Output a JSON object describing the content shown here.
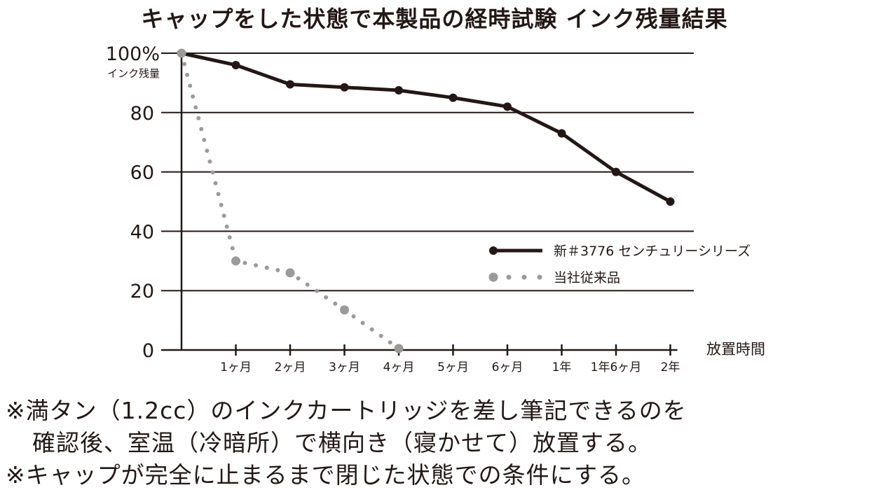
{
  "chart_data": {
    "type": "line",
    "title": "キャップをした状態で本製品の経時試験 インク残量結果",
    "ylabel_top": "100%",
    "ylabel_sub": "インク残量",
    "xlabel": "放置時間",
    "ylim": [
      0,
      100
    ],
    "yticks": [
      0,
      20,
      40,
      60,
      80
    ],
    "categories": [
      "1ヶ月",
      "2ヶ月",
      "3ヶ月",
      "4ヶ月",
      "5ヶ月",
      "6ヶ月",
      "1年",
      "1年6ヶ月",
      "2年"
    ],
    "grid": true,
    "legend_position": "right",
    "series": [
      {
        "name": "新＃3776 センチュリーシリーズ",
        "style": "solid",
        "color": "#231815",
        "points": [
          {
            "x": 0,
            "y": 100
          },
          {
            "x": 1,
            "y": 96
          },
          {
            "x": 2,
            "y": 89.5
          },
          {
            "x": 3,
            "y": 88.5
          },
          {
            "x": 4,
            "y": 87.5
          },
          {
            "x": 5,
            "y": 85
          },
          {
            "x": 6,
            "y": 82
          },
          {
            "x": 7,
            "y": 73
          },
          {
            "x": 8,
            "y": 60
          },
          {
            "x": 9,
            "y": 50
          }
        ]
      },
      {
        "name": "当社従来品",
        "style": "dotted",
        "color": "#9a9a9a",
        "points": [
          {
            "x": 0,
            "y": 100
          },
          {
            "x": 1,
            "y": 30
          },
          {
            "x": 2,
            "y": 26
          },
          {
            "x": 3,
            "y": 13.5
          },
          {
            "x": 4,
            "y": 0.5
          }
        ]
      }
    ]
  },
  "notes": [
    "※満タン（1.2cc）のインクカートリッジを差し筆記できるのを",
    "確認後、室温（冷暗所）で横向き（寝かせて）放置する。",
    "※キャップが完全に止まるまで閉じた状態での条件にする。"
  ]
}
